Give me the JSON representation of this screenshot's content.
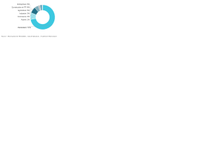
{
  "chart_data": {
    "type": "pie",
    "donut": true,
    "categories": [
      "Particuliers",
      "Entreprises",
      "Construction et TP",
      "Agriculture",
      "Industrie",
      "Commerce",
      "Autres"
    ],
    "values": [
      72,
      9,
      8,
      5,
      3,
      2,
      1
    ],
    "value_labels": [
      "72%",
      "9%",
      "8%",
      "5%",
      "3%",
      "2%",
      "1%"
    ],
    "colors": [
      "#3cc8e0",
      "#9fe3ee",
      "#1a6d86",
      "#7fb0bf",
      "#c3c9cc",
      "#2a8fb0",
      "#e0e4e6"
    ],
    "source": "Source : Observatoire de l'Immobilier - Calcul Indicateurs - Traitement Observatoire"
  }
}
